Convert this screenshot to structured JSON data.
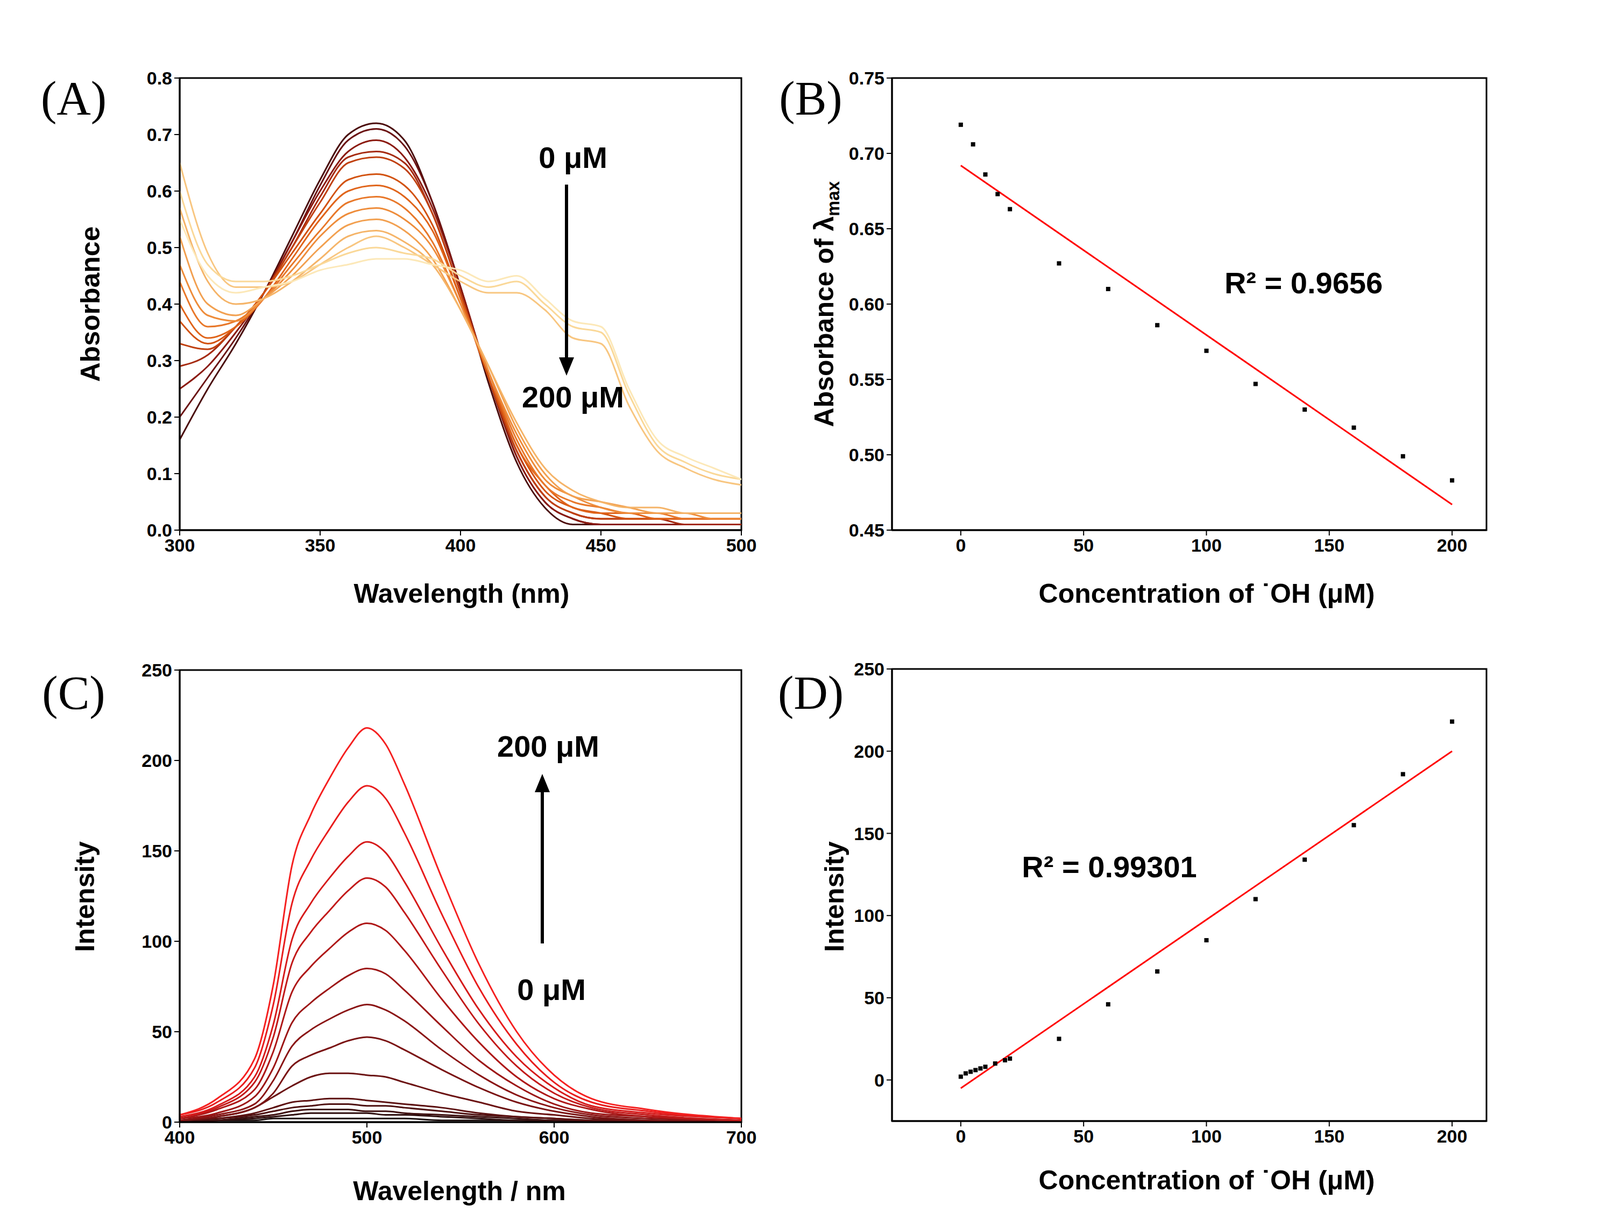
{
  "chart_data": [
    {
      "panel_label": "(A)",
      "type": "line",
      "x_label": "Wavelength (nm)",
      "y_label": "Absorbance",
      "xlim": [
        300,
        500
      ],
      "xticks": [
        300,
        350,
        400,
        450,
        500
      ],
      "ylim": [
        0,
        0.8
      ],
      "yticks": [
        {
          "value": 0,
          "label": "0.0"
        },
        0.1,
        0.2,
        0.3,
        0.4,
        0.5,
        0.6,
        0.7,
        0.8
      ],
      "annotations": [
        {
          "text": "0 μM"
        },
        {
          "text": "200 μM"
        }
      ],
      "x": [
        300,
        310,
        320,
        330,
        340,
        350,
        360,
        370,
        380,
        390,
        400,
        410,
        420,
        430,
        440,
        450,
        460,
        470,
        480,
        490,
        500
      ],
      "series": [
        {
          "color": "#4a0a0a",
          "values": [
            0.16,
            0.25,
            0.33,
            0.42,
            0.52,
            0.62,
            0.7,
            0.72,
            0.69,
            0.58,
            0.43,
            0.26,
            0.12,
            0.04,
            0.01,
            0.01,
            0.01,
            0.01,
            0.01,
            0.01,
            0.01
          ]
        },
        {
          "color": "#6b1212",
          "values": [
            0.2,
            0.27,
            0.34,
            0.42,
            0.51,
            0.61,
            0.69,
            0.71,
            0.68,
            0.58,
            0.43,
            0.27,
            0.13,
            0.05,
            0.02,
            0.01,
            0.01,
            0.01,
            0.01,
            0.01,
            0.01
          ]
        },
        {
          "color": "#8b1a10",
          "values": [
            0.25,
            0.29,
            0.35,
            0.42,
            0.51,
            0.6,
            0.67,
            0.69,
            0.66,
            0.57,
            0.43,
            0.27,
            0.13,
            0.05,
            0.02,
            0.01,
            0.01,
            0.01,
            0.01,
            0.01,
            0.01
          ]
        },
        {
          "color": "#a52a10",
          "values": [
            0.29,
            0.31,
            0.36,
            0.42,
            0.5,
            0.59,
            0.66,
            0.67,
            0.65,
            0.56,
            0.42,
            0.27,
            0.14,
            0.06,
            0.03,
            0.02,
            0.02,
            0.02,
            0.01,
            0.01,
            0.01
          ]
        },
        {
          "color": "#c0400f",
          "values": [
            0.33,
            0.32,
            0.36,
            0.42,
            0.5,
            0.58,
            0.65,
            0.66,
            0.64,
            0.56,
            0.42,
            0.27,
            0.14,
            0.06,
            0.03,
            0.02,
            0.02,
            0.02,
            0.02,
            0.02,
            0.02
          ]
        },
        {
          "color": "#d2520f",
          "values": [
            0.37,
            0.33,
            0.36,
            0.42,
            0.49,
            0.56,
            0.62,
            0.63,
            0.61,
            0.54,
            0.41,
            0.27,
            0.15,
            0.07,
            0.04,
            0.03,
            0.02,
            0.02,
            0.02,
            0.02,
            0.02
          ]
        },
        {
          "color": "#e0641a",
          "values": [
            0.4,
            0.34,
            0.36,
            0.41,
            0.48,
            0.55,
            0.6,
            0.61,
            0.59,
            0.53,
            0.41,
            0.28,
            0.15,
            0.08,
            0.04,
            0.03,
            0.03,
            0.02,
            0.02,
            0.02,
            0.02
          ]
        },
        {
          "color": "#e8782a",
          "values": [
            0.44,
            0.36,
            0.37,
            0.41,
            0.47,
            0.53,
            0.58,
            0.59,
            0.57,
            0.51,
            0.4,
            0.28,
            0.16,
            0.08,
            0.05,
            0.04,
            0.03,
            0.03,
            0.02,
            0.02,
            0.02
          ]
        },
        {
          "color": "#ee8c3a",
          "values": [
            0.47,
            0.38,
            0.37,
            0.41,
            0.46,
            0.52,
            0.56,
            0.57,
            0.55,
            0.5,
            0.4,
            0.28,
            0.17,
            0.09,
            0.06,
            0.04,
            0.03,
            0.03,
            0.03,
            0.02,
            0.02
          ]
        },
        {
          "color": "#f2a050",
          "values": [
            0.52,
            0.4,
            0.38,
            0.41,
            0.45,
            0.5,
            0.54,
            0.55,
            0.53,
            0.48,
            0.39,
            0.29,
            0.18,
            0.1,
            0.06,
            0.05,
            0.04,
            0.03,
            0.03,
            0.03,
            0.03
          ]
        },
        {
          "color": "#f5b468",
          "values": [
            0.57,
            0.44,
            0.4,
            0.41,
            0.44,
            0.48,
            0.52,
            0.53,
            0.51,
            0.47,
            0.39,
            0.29,
            0.19,
            0.11,
            0.07,
            0.05,
            0.04,
            0.04,
            0.03,
            0.03,
            0.03
          ]
        },
        {
          "color": "#f8c680",
          "values": [
            0.65,
            0.49,
            0.43,
            0.43,
            0.44,
            0.47,
            0.5,
            0.52,
            0.5,
            0.47,
            0.44,
            0.42,
            0.42,
            0.39,
            0.34,
            0.33,
            0.22,
            0.14,
            0.11,
            0.09,
            0.08
          ]
        },
        {
          "color": "#fad898",
          "values": [
            0.6,
            0.47,
            0.44,
            0.44,
            0.45,
            0.47,
            0.49,
            0.5,
            0.49,
            0.48,
            0.45,
            0.43,
            0.44,
            0.4,
            0.36,
            0.35,
            0.24,
            0.15,
            0.12,
            0.1,
            0.09
          ]
        },
        {
          "color": "#fce8b8",
          "values": [
            0.55,
            0.45,
            0.42,
            0.43,
            0.44,
            0.46,
            0.47,
            0.48,
            0.48,
            0.47,
            0.46,
            0.44,
            0.45,
            0.41,
            0.37,
            0.36,
            0.25,
            0.16,
            0.13,
            0.11,
            0.09
          ]
        }
      ]
    },
    {
      "panel_label": "(B)",
      "type": "scatter",
      "x_label": "Concentration of ˙OH (μM)",
      "y_label": {
        "text": "Absorbance of λ",
        "subscript": "max"
      },
      "xlim": [
        -28,
        214
      ],
      "xticks": [
        0,
        50,
        100,
        150,
        200
      ],
      "ylim": [
        0.45,
        0.75
      ],
      "yticks": [
        0.45,
        {
          "value": 0.5,
          "label": "0.50"
        },
        0.55,
        {
          "value": 0.6,
          "label": "0.60"
        },
        0.65,
        {
          "value": 0.7,
          "label": "0.70"
        },
        0.75
      ],
      "annotations": [
        {
          "text": "R² = 0.9656"
        }
      ],
      "color": "#000000",
      "marker": "square",
      "x": [
        0,
        5,
        10,
        15,
        20,
        40,
        60,
        80,
        100,
        120,
        140,
        160,
        180,
        200
      ],
      "values": [
        0.719,
        0.706,
        0.686,
        0.673,
        0.663,
        0.627,
        0.61,
        0.586,
        0.569,
        0.547,
        0.53,
        0.518,
        0.499,
        0.483
      ],
      "fit": {
        "color": "#ff0000",
        "x": [
          0,
          200
        ],
        "values": [
          0.692,
          0.467
        ]
      }
    },
    {
      "panel_label": "(C)",
      "type": "line",
      "x_label": "Wavelength / nm",
      "y_label": "Intensity",
      "xlim": [
        400,
        700
      ],
      "xticks": [
        400,
        500,
        600,
        700
      ],
      "ylim": [
        0,
        250
      ],
      "yticks": [
        0,
        50,
        100,
        150,
        200,
        250
      ],
      "annotations": [
        {
          "text": "0 μM"
        },
        {
          "text": "200 μM"
        }
      ],
      "x": [
        400,
        420,
        440,
        450,
        460,
        470,
        480,
        490,
        500,
        510,
        520,
        540,
        560,
        580,
        600,
        620,
        650,
        700
      ],
      "series": [
        {
          "color": "#1c1010",
          "values": [
            0,
            1,
            1,
            2,
            2,
            2,
            2,
            2,
            2,
            2,
            2,
            1,
            1,
            1,
            0,
            0,
            0,
            0
          ]
        },
        {
          "color": "#2e0e0e",
          "values": [
            0,
            1,
            2,
            3,
            4,
            5,
            5,
            5,
            5,
            4,
            4,
            3,
            2,
            1,
            1,
            0,
            0,
            0
          ]
        },
        {
          "color": "#3d0f0f",
          "values": [
            0,
            1,
            3,
            4,
            6,
            7,
            7,
            7,
            6,
            6,
            5,
            4,
            3,
            2,
            1,
            1,
            0,
            0
          ]
        },
        {
          "color": "#4d1010",
          "values": [
            1,
            2,
            4,
            6,
            8,
            9,
            10,
            10,
            9,
            9,
            8,
            6,
            4,
            3,
            2,
            1,
            0,
            0
          ]
        },
        {
          "color": "#5c1111",
          "values": [
            1,
            2,
            5,
            8,
            11,
            12,
            13,
            13,
            12,
            11,
            10,
            8,
            5,
            3,
            2,
            1,
            1,
            0
          ]
        },
        {
          "color": "#6b1212",
          "values": [
            1,
            3,
            8,
            14,
            20,
            25,
            27,
            27,
            26,
            25,
            22,
            16,
            11,
            6,
            4,
            2,
            1,
            0
          ]
        },
        {
          "color": "#7a1313",
          "values": [
            1,
            3,
            8,
            16,
            31,
            37,
            41,
            45,
            47,
            45,
            40,
            29,
            19,
            11,
            6,
            3,
            1,
            0
          ]
        },
        {
          "color": "#8a1414",
          "values": [
            1,
            4,
            10,
            23,
            42,
            51,
            57,
            62,
            65,
            62,
            56,
            40,
            26,
            15,
            8,
            4,
            2,
            1
          ]
        },
        {
          "color": "#9c1515",
          "values": [
            2,
            5,
            14,
            30,
            55,
            66,
            74,
            81,
            85,
            82,
            73,
            53,
            34,
            20,
            10,
            5,
            3,
            1
          ]
        },
        {
          "color": "#ae1717",
          "values": [
            2,
            7,
            18,
            39,
            72,
            86,
            96,
            105,
            110,
            106,
            95,
            68,
            44,
            25,
            13,
            7,
            3,
            1
          ]
        },
        {
          "color": "#c21919",
          "values": [
            3,
            8,
            22,
            47,
            88,
            105,
            117,
            128,
            135,
            130,
            116,
            84,
            54,
            31,
            16,
            8,
            4,
            1
          ]
        },
        {
          "color": "#d61b1b",
          "values": [
            3,
            9,
            25,
            54,
            101,
            121,
            135,
            147,
            155,
            149,
            133,
            96,
            62,
            36,
            19,
            9,
            5,
            2
          ]
        },
        {
          "color": "#e81d1d",
          "values": [
            4,
            11,
            30,
            65,
            121,
            145,
            162,
            177,
            186,
            179,
            160,
            115,
            74,
            43,
            22,
            11,
            6,
            2
          ]
        },
        {
          "color": "#f52020",
          "values": [
            4,
            13,
            35,
            76,
            142,
            170,
            190,
            207,
            218,
            209,
            187,
            135,
            87,
            50,
            26,
            13,
            7,
            2
          ]
        }
      ]
    },
    {
      "panel_label": "(D)",
      "type": "scatter",
      "x_label": "Concentration of ˙OH (μM)",
      "y_label": "Intensity",
      "xlim": [
        -28,
        214
      ],
      "xticks": [
        0,
        50,
        100,
        150,
        200
      ],
      "ylim": [
        -25,
        250
      ],
      "yticks": [
        0,
        50,
        100,
        150,
        200,
        250
      ],
      "annotations": [
        {
          "text": "R² = 0.99301"
        }
      ],
      "color": "#000000",
      "marker": "square",
      "x": [
        0,
        2,
        4,
        6,
        8,
        10,
        14,
        18,
        20,
        40,
        60,
        80,
        100,
        120,
        140,
        160,
        180,
        200
      ],
      "values": [
        2,
        4,
        5,
        6,
        7,
        8,
        10,
        12,
        13,
        25,
        46,
        66,
        85,
        110,
        134,
        155,
        186,
        218
      ],
      "fit": {
        "color": "#ff0000",
        "x": [
          0,
          200
        ],
        "values": [
          -5,
          200
        ]
      }
    }
  ]
}
